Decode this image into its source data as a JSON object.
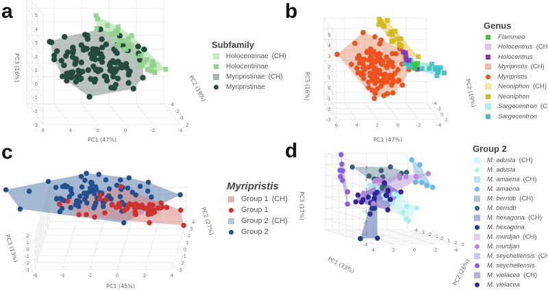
{
  "panels": [
    {
      "letter": "a"
    },
    {
      "letter": "b"
    },
    {
      "letter": "c"
    },
    {
      "letter": "d"
    }
  ],
  "chart_data": [
    {
      "type": "scatter",
      "id": "a",
      "xlabel": "PC1 (47%)",
      "ylabel": "PC2 (19%)",
      "zlabel": "PC3 (16%)",
      "ranges": {
        "pc1": [
          -4,
          6
        ],
        "pc2": [
          -4,
          2
        ],
        "pc3": [
          -3,
          5
        ]
      },
      "ticks": {
        "pc1": [
          6,
          4,
          2,
          0,
          -2,
          -4
        ],
        "pc2": [
          -4,
          -2,
          0,
          2
        ],
        "pc3": [
          -3,
          -2,
          -1,
          0,
          1,
          2,
          3,
          4,
          5
        ]
      },
      "legend_title": "Subfamily",
      "legend": [
        {
          "name": "Holocentrinae",
          "suffix": "(CH)",
          "italic": false,
          "color": "#c8e8c2",
          "symbol": "square"
        },
        {
          "name": "Holocentrinae",
          "suffix": "",
          "italic": false,
          "color": "#8fd18a",
          "symbol": "smallsq"
        },
        {
          "name": "Myripristinae",
          "suffix": "(CH)",
          "italic": false,
          "color": "#aab4b1",
          "symbol": "square"
        },
        {
          "name": "Myripristinae",
          "suffix": "",
          "italic": false,
          "color": "#254a3e",
          "symbol": "dot"
        }
      ],
      "groups": [
        {
          "name": "Myripristinae",
          "color": "#254a3e",
          "hull": "#7f8f8a",
          "marker": "circle",
          "n": 110,
          "seed": 11,
          "center": [
            1.75,
            0,
            0.85
          ],
          "sd": [
            1.5,
            1,
            0.9
          ]
        },
        {
          "name": "Holocentrinae",
          "color": "#8fd18a",
          "hull": "#9fd89a",
          "marker": "square",
          "n": 34,
          "seed": 12,
          "from": [
            2.2,
            -2,
            4.5
          ],
          "to": [
            -3.9,
            -2,
            -0.75
          ],
          "sd": [
            0.3,
            0.6,
            0.3
          ]
        }
      ]
    },
    {
      "type": "scatter",
      "id": "b",
      "xlabel": "PC1 (47%)",
      "ylabel": "PC2 (19%)",
      "zlabel": "PC3 (16%)",
      "ranges": {
        "pc1": [
          -4,
          6
        ],
        "pc2": [
          -4,
          2
        ],
        "pc3": [
          -3,
          5
        ]
      },
      "ticks": {
        "pc1": [
          6,
          4,
          2,
          0,
          -2,
          -4
        ],
        "pc2": [
          -4,
          -2,
          0,
          2
        ],
        "pc3": [
          -3,
          -2,
          -1,
          0,
          1,
          2,
          3,
          4,
          5
        ]
      },
      "legend_title": "Genus",
      "legend": [
        {
          "name": "Flammeo",
          "suffix": "",
          "italic": true,
          "color": "#33cc33",
          "symbol": "smallsq"
        },
        {
          "name": "Holocentrus",
          "suffix": "(CH)",
          "italic": true,
          "color": "#dcc6f0",
          "symbol": "square"
        },
        {
          "name": "Holocentrus",
          "suffix": "",
          "italic": true,
          "color": "#8a2fc0",
          "symbol": "smallsq"
        },
        {
          "name": "Myripristis",
          "suffix": "(CH)",
          "italic": true,
          "color": "#f2baa6",
          "symbol": "square"
        },
        {
          "name": "Myripristis",
          "suffix": "",
          "italic": true,
          "color": "#f0521e",
          "symbol": "dot"
        },
        {
          "name": "Neoniphon",
          "suffix": "(CH)",
          "italic": true,
          "color": "#f0e7a2",
          "symbol": "square"
        },
        {
          "name": "Neoniphon",
          "suffix": "",
          "italic": true,
          "color": "#d4b81c",
          "symbol": "smallsq"
        },
        {
          "name": "Sargocentron",
          "suffix": "(CH)",
          "italic": true,
          "color": "#b2f0ec",
          "symbol": "square"
        },
        {
          "name": "Sargocentron",
          "suffix": "",
          "italic": true,
          "color": "#3cc0c0",
          "symbol": "smallsq"
        }
      ],
      "groups": [
        {
          "name": "Myripristis",
          "color": "#f0521e",
          "hull": "#e89a80",
          "marker": "circle",
          "n": 110,
          "seed": 21,
          "center": [
            1.67,
            0,
            1.3
          ],
          "sd": [
            1.4,
            0.8,
            1.2
          ]
        },
        {
          "name": "Neoniphon",
          "color": "#d4b81c",
          "hull": "#dcc850",
          "marker": "square",
          "n": 22,
          "seed": 22,
          "from": [
            1.6,
            -2,
            5.9
          ],
          "to": [
            -3.1,
            -2,
            1.1
          ],
          "sd": [
            0.35,
            0.4,
            0.35
          ]
        },
        {
          "name": "Sargocentron",
          "color": "#3cc0c0",
          "hull": "#70d8d4",
          "marker": "square",
          "n": 20,
          "seed": 23,
          "from": [
            -1.4,
            -2,
            1.4
          ],
          "to": [
            -5.3,
            -2,
            0.26
          ],
          "sd": [
            0.3,
            0.3,
            0.25
          ]
        },
        {
          "name": "Holocentrus",
          "color": "#8a2fc0",
          "hull": "#c8a8e4",
          "marker": "square",
          "n": 6,
          "seed": 24,
          "from": [
            -0.6,
            -2,
            3.1
          ],
          "to": [
            -2.9,
            -2,
            0.6
          ],
          "sd": [
            0.2,
            0.2,
            0.2
          ]
        },
        {
          "name": "Flammeo",
          "color": "#33cc33",
          "hull": "#88e088",
          "marker": "square",
          "n": 3,
          "seed": 25,
          "center": [
            -2.5,
            -2,
            1
          ],
          "sd": [
            0.15,
            0.1,
            0.15
          ]
        }
      ]
    },
    {
      "type": "scatter",
      "id": "c",
      "xlabel": "PC1 (45%)",
      "ylabel": "PC2 (27%)",
      "zlabel": "PC3 (13%)",
      "ranges": {
        "pc1": [
          -6,
          4
        ],
        "pc2": [
          -3,
          4
        ],
        "pc3": [
          -3,
          2
        ]
      },
      "ticks": {
        "pc1": [
          -6,
          -4,
          -2,
          0,
          2,
          4
        ],
        "pc2": [
          -3,
          -2,
          -1,
          0,
          1,
          2,
          3,
          4
        ],
        "pc3": [
          -3,
          -2,
          -1,
          0,
          1,
          2
        ]
      },
      "legend_title": "Myripristis",
      "legend": [
        {
          "name": "Group 1",
          "suffix": "(CH)",
          "italic": false,
          "color": "#e8b4b4",
          "symbol": "square"
        },
        {
          "name": "Group 1",
          "suffix": "",
          "italic": false,
          "color": "#d0312d",
          "symbol": "dot"
        },
        {
          "name": "Group 2",
          "suffix": "(CH)",
          "italic": false,
          "color": "#b6c7dc",
          "symbol": "square"
        },
        {
          "name": "Group 2",
          "suffix": "",
          "italic": false,
          "color": "#24508f",
          "symbol": "dot"
        }
      ],
      "groups": [
        {
          "name": "Group 2",
          "color": "#24508f",
          "hull": "#5a80ac",
          "marker": "circle",
          "n": 85,
          "seed": 31,
          "center": [
            -2.5,
            3,
            2
          ],
          "sd": [
            2,
            0.7,
            1
          ]
        },
        {
          "name": "Group 1",
          "color": "#d0312d",
          "hull": "#d98a88",
          "marker": "circle",
          "n": 50,
          "seed": 32,
          "center": [
            0.8,
            1.5,
            1.5
          ],
          "sd": [
            1.8,
            0.6,
            0.6
          ]
        }
      ]
    },
    {
      "type": "scatter",
      "id": "d",
      "xlabel": "PC1 (33%)",
      "ylabel": "PC2 (26%)",
      "zlabel": "PC3 (17%)",
      "ranges": {
        "pc1": [
          -4,
          4
        ],
        "pc2": [
          -4,
          3
        ],
        "pc3": [
          -4,
          3
        ]
      },
      "ticks": {
        "pc1": [
          4,
          2,
          0,
          -2,
          -4
        ],
        "pc2": [
          -4,
          -3,
          -2,
          -1,
          0,
          1,
          2,
          3
        ],
        "pc3": [
          -4,
          -3,
          -2,
          -1,
          0,
          1,
          2,
          3
        ]
      },
      "legend_title": "Group 2",
      "legend": [
        {
          "name": "M. adusta",
          "suffix": "(CH)",
          "italic": true,
          "color": "#d2f6f4",
          "symbol": "square"
        },
        {
          "name": "M. adusta",
          "suffix": "",
          "italic": true,
          "color": "#a8f0ee",
          "symbol": "dot"
        },
        {
          "name": "M. amaena",
          "suffix": "(CH)",
          "italic": true,
          "color": "#c2e2f4",
          "symbol": "square"
        },
        {
          "name": "M. amaena",
          "suffix": "",
          "italic": true,
          "color": "#68b8ee",
          "symbol": "dot"
        },
        {
          "name": "M. berndti",
          "suffix": "(CH)",
          "italic": true,
          "color": "#b4c4cc",
          "symbol": "square"
        },
        {
          "name": "M. berndti",
          "suffix": "",
          "italic": true,
          "color": "#3a6478",
          "symbol": "dot"
        },
        {
          "name": "M. hexagona",
          "suffix": "(CH)",
          "italic": true,
          "color": "#a8b8dc",
          "symbol": "square"
        },
        {
          "name": "M. hexagona",
          "suffix": "",
          "italic": true,
          "color": "#1e3a9a",
          "symbol": "dot"
        },
        {
          "name": "M. murdjan",
          "suffix": "(CH)",
          "italic": true,
          "color": "#ded2ee",
          "symbol": "square"
        },
        {
          "name": "M. murdjan",
          "suffix": "",
          "italic": true,
          "color": "#b48ad8",
          "symbol": "dot"
        },
        {
          "name": "M. seychellensis",
          "suffix": "(CH)",
          "italic": true,
          "color": "#d2c6f5",
          "symbol": "square"
        },
        {
          "name": "M. seychellensis",
          "suffix": "",
          "italic": true,
          "color": "#8a5cf0",
          "symbol": "dot"
        },
        {
          "name": "M. violacea",
          "suffix": "(CH)",
          "italic": true,
          "color": "#bab0d8",
          "symbol": "square"
        },
        {
          "name": "M. violacea",
          "suffix": "",
          "italic": true,
          "color": "#3a1f9a",
          "symbol": "dot"
        }
      ],
      "groups": [
        {
          "name": "M. adusta",
          "color": "#a8f0ee",
          "hull": "#b8f0ec",
          "marker": "circle",
          "n": 14,
          "seed": 41,
          "from": [
            2.3,
            0,
            0.4
          ],
          "to": [
            -2.5,
            0,
            -2.1
          ],
          "sd": [
            0.4,
            0.3,
            0.5
          ]
        },
        {
          "name": "M. amaena",
          "color": "#68b8ee",
          "hull": "#80b8dc",
          "marker": "circle",
          "n": 6,
          "seed": 42,
          "from": [
            -1.7,
            0,
            3.25
          ],
          "to": [
            -4.5,
            0,
            -0.7
          ],
          "sd": [
            0.3,
            0.2,
            0.4
          ]
        },
        {
          "name": "M. berndti",
          "color": "#3a6478",
          "hull": "#7c98a8",
          "marker": "circle",
          "n": 12,
          "seed": 43,
          "center": [
            1.3,
            0,
            1.7
          ],
          "sd": [
            1.2,
            0.3,
            0.8
          ]
        },
        {
          "name": "M. hexagona",
          "color": "#1e3a9a",
          "hull": "#5a70b0",
          "marker": "circle",
          "n": 8,
          "seed": 44,
          "from": [
            1.7,
            0,
            0.75
          ],
          "to": [
            2.7,
            0,
            -4.6
          ],
          "sd": [
            0.4,
            0.2,
            0.3
          ]
        },
        {
          "name": "M. murdjan",
          "color": "#b48ad8",
          "hull": "#b8a0dc",
          "marker": "circle",
          "n": 10,
          "seed": 45,
          "center": [
            0,
            0,
            1.06
          ],
          "sd": [
            1.3,
            0.3,
            0.8
          ]
        },
        {
          "name": "M. seychellensis",
          "color": "#8a5cf0",
          "hull": "#a088e8",
          "marker": "circle",
          "n": 8,
          "seed": 46,
          "from": [
            5.2,
            0,
            3.4
          ],
          "to": [
            4.5,
            0,
            -1.25
          ],
          "sd": [
            0.2,
            0.2,
            0.3
          ]
        },
        {
          "name": "M. violacea",
          "color": "#3a1f9a",
          "hull": "#6a58b4",
          "marker": "circle",
          "n": 15,
          "seed": 47,
          "center": [
            1.3,
            0,
            0
          ],
          "sd": [
            1.2,
            0.3,
            0.5
          ]
        }
      ]
    }
  ]
}
